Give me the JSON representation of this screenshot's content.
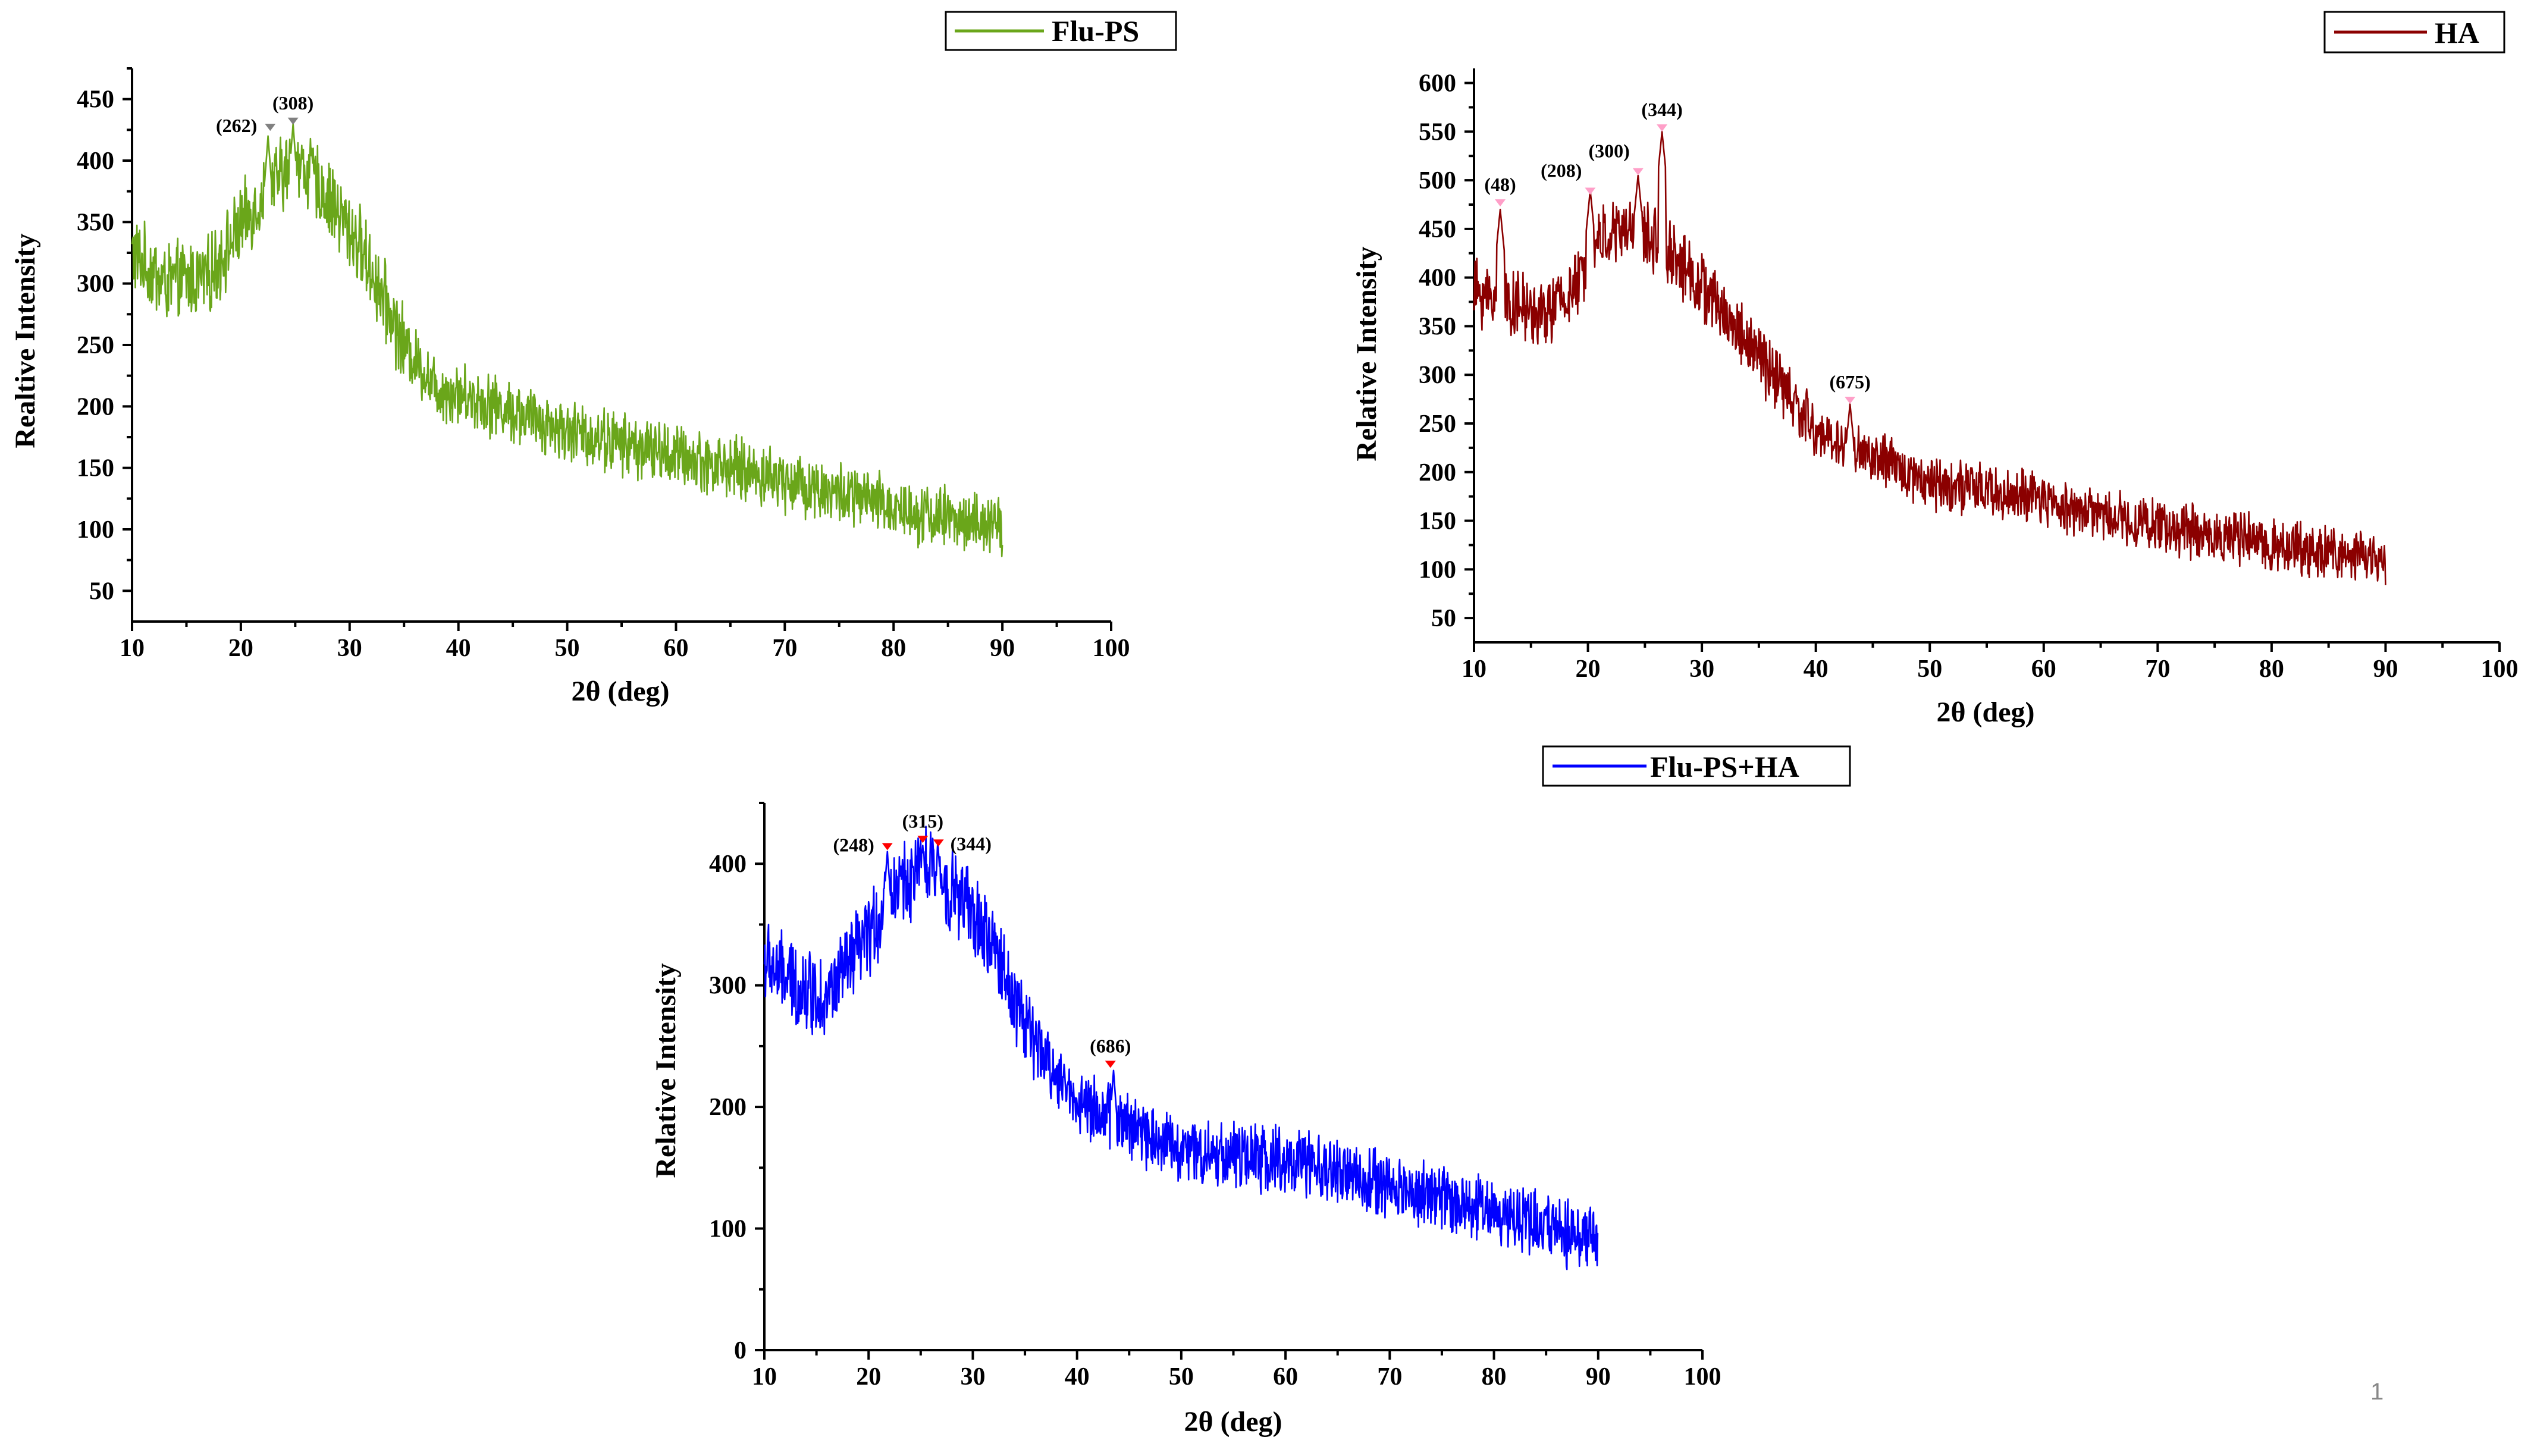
{
  "page_number": "1",
  "chart_data": [
    {
      "id": "flu-ps",
      "type": "line",
      "legend": "Flu-PS",
      "color": "#6aa61a",
      "xlabel": "2θ (deg)",
      "ylabel": "Realtive Intensity",
      "xlim": [
        10,
        100
      ],
      "ylim": [
        25,
        475
      ],
      "xticks": [
        10,
        20,
        30,
        40,
        50,
        60,
        70,
        80,
        90,
        100
      ],
      "yticks": [
        50,
        100,
        150,
        200,
        250,
        300,
        350,
        400,
        450
      ],
      "x_range": [
        10,
        90
      ],
      "baseline": [
        [
          10,
          325
        ],
        [
          13,
          300
        ],
        [
          17,
          305
        ],
        [
          21,
          360
        ],
        [
          25,
          400
        ],
        [
          28,
          370
        ],
        [
          31,
          330
        ],
        [
          35,
          250
        ],
        [
          38,
          215
        ],
        [
          42,
          205
        ],
        [
          50,
          180
        ],
        [
          60,
          160
        ],
        [
          70,
          140
        ],
        [
          80,
          118
        ],
        [
          90,
          100
        ]
      ],
      "noise": 28,
      "spikes": [
        [
          22.5,
          420
        ],
        [
          24.8,
          430
        ],
        [
          26.5,
          410
        ]
      ],
      "peaks": [
        {
          "x": 22.7,
          "y": 428,
          "label": "(262)",
          "side": "left"
        },
        {
          "x": 24.8,
          "y": 433,
          "label": "(308)",
          "side": "top"
        }
      ],
      "marker_color": "#808080"
    },
    {
      "id": "ha",
      "type": "line",
      "legend": "HA",
      "color": "#8b0000",
      "xlabel": "2θ (deg)",
      "ylabel": "Relative Intensity",
      "xlim": [
        10,
        100
      ],
      "ylim": [
        25,
        615
      ],
      "xticks": [
        10,
        20,
        30,
        40,
        50,
        60,
        70,
        80,
        90,
        100
      ],
      "yticks": [
        50,
        100,
        150,
        200,
        250,
        300,
        350,
        400,
        450,
        500,
        550,
        600
      ],
      "x_range": [
        10,
        90
      ],
      "baseline": [
        [
          10,
          385
        ],
        [
          13,
          375
        ],
        [
          16,
          360
        ],
        [
          19,
          390
        ],
        [
          21,
          440
        ],
        [
          24,
          450
        ],
        [
          27,
          430
        ],
        [
          30,
          390
        ],
        [
          35,
          320
        ],
        [
          40,
          240
        ],
        [
          45,
          215
        ],
        [
          50,
          190
        ],
        [
          60,
          170
        ],
        [
          70,
          145
        ],
        [
          80,
          125
        ],
        [
          90,
          110
        ]
      ],
      "noise": 30,
      "spikes": [
        [
          12.3,
          470
        ],
        [
          20.2,
          490
        ],
        [
          24.4,
          505
        ],
        [
          26.5,
          550
        ],
        [
          43.0,
          270
        ]
      ],
      "peaks": [
        {
          "x": 12.3,
          "y": 478,
          "label": "(48)",
          "side": "top"
        },
        {
          "x": 20.2,
          "y": 490,
          "label": "(208)",
          "side": "top-left"
        },
        {
          "x": 24.4,
          "y": 510,
          "label": "(300)",
          "side": "top-left"
        },
        {
          "x": 26.5,
          "y": 555,
          "label": "(344)",
          "side": "top"
        },
        {
          "x": 43.0,
          "y": 275,
          "label": "(675)",
          "side": "top"
        }
      ],
      "marker_color": "#ff9fc8"
    },
    {
      "id": "flu-ps-ha",
      "type": "line",
      "legend": "Flu-PS+HA",
      "color": "#0000ff",
      "xlabel": "2θ (deg)",
      "ylabel": "Relative Intensity",
      "xlim": [
        10,
        100
      ],
      "ylim": [
        0,
        450
      ],
      "xticks": [
        10,
        20,
        30,
        40,
        50,
        60,
        70,
        80,
        90,
        100
      ],
      "yticks": [
        0,
        100,
        200,
        300,
        400
      ],
      "x_range": [
        10,
        90
      ],
      "baseline": [
        [
          10,
          320
        ],
        [
          13,
          300
        ],
        [
          16,
          290
        ],
        [
          20,
          340
        ],
        [
          23,
          385
        ],
        [
          26,
          395
        ],
        [
          29,
          370
        ],
        [
          32,
          330
        ],
        [
          36,
          250
        ],
        [
          40,
          205
        ],
        [
          45,
          185
        ],
        [
          50,
          165
        ],
        [
          60,
          155
        ],
        [
          70,
          135
        ],
        [
          80,
          115
        ],
        [
          90,
          90
        ]
      ],
      "noise": 30,
      "spikes": [
        [
          21.8,
          410
        ],
        [
          25.2,
          415
        ],
        [
          26.7,
          410
        ],
        [
          43.5,
          230
        ]
      ],
      "peaks": [
        {
          "x": 21.8,
          "y": 415,
          "label": "(248)",
          "side": "left"
        },
        {
          "x": 25.2,
          "y": 421,
          "label": "(315)",
          "side": "top"
        },
        {
          "x": 26.7,
          "y": 418,
          "label": "(344)",
          "side": "right"
        },
        {
          "x": 43.2,
          "y": 236,
          "label": "(686)",
          "side": "top"
        }
      ],
      "marker_color": "#ff0000"
    }
  ]
}
